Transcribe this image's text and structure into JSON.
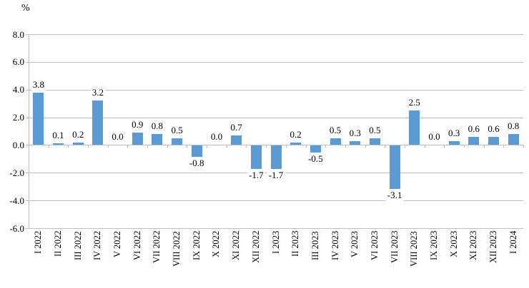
{
  "chart_data": {
    "type": "bar",
    "title": "",
    "unit_label": "%",
    "categories": [
      "I 2022",
      "II 2022",
      "III 2022",
      "IV 2022",
      "V 2022",
      "VI 2022",
      "VII 2022",
      "VIII 2022",
      "IX 2022",
      "X 2022",
      "XI 2022",
      "XII 2022",
      "I 2023",
      "II 2023",
      "III 2023",
      "IV 2023",
      "V 2023",
      "VI 2023",
      "VII 2023",
      "VIII 2023",
      "IX 2023",
      "X 2023",
      "XI 2023",
      "XII 2023",
      "I 2024"
    ],
    "values": [
      3.8,
      0.1,
      0.2,
      3.2,
      0.0,
      0.9,
      0.8,
      0.5,
      -0.8,
      0.0,
      0.7,
      -1.7,
      -1.7,
      0.2,
      -0.5,
      0.5,
      0.3,
      0.5,
      -3.1,
      2.5,
      0.0,
      0.3,
      0.6,
      0.6,
      0.8
    ],
    "data_labels": [
      "3.8",
      "0.1",
      "0.2",
      "3.2",
      "0.0",
      "0.9",
      "0.8",
      "0.5",
      "-0.8",
      "0.0",
      "0.7",
      "-1.7",
      "-1.7",
      "0.2",
      "-0.5",
      "0.5",
      "0.3",
      "0.5",
      "-3.1",
      "2.5",
      "0.0",
      "0.3",
      "0.6",
      "0.6",
      "0.8"
    ],
    "ylim": [
      -6,
      8
    ],
    "yticks": [
      8,
      6,
      4,
      2,
      0,
      -2,
      -4,
      -6
    ],
    "ytick_labels": [
      "8.0",
      "6.0",
      "4.0",
      "2.0",
      "0.0",
      "-2.0",
      "-4.0",
      "-6.0"
    ],
    "xlabel": "",
    "ylabel": "%",
    "grid": true,
    "legend": "none",
    "bar_color": "#5B9BD5",
    "gridline_color": "#BFBFBF",
    "text_color": "#000000"
  }
}
